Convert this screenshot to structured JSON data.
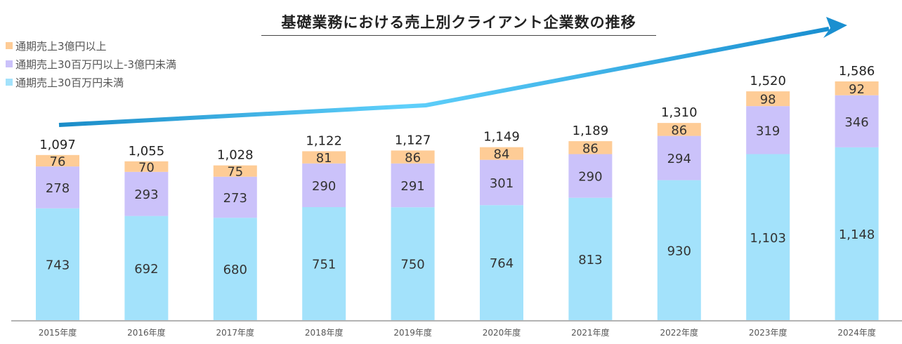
{
  "chart_data": {
    "type": "bar",
    "stacked": true,
    "title": "基礎業務における売上別クライアント企業数の推移",
    "xlabel": "",
    "ylabel": "",
    "ylim": [
      0,
      1800
    ],
    "grid": false,
    "legend_position": "top-left",
    "categories": [
      "2015年度",
      "2016年度",
      "2017年度",
      "2018年度",
      "2019年度",
      "2020年度",
      "2021年度",
      "2022年度",
      "2023年度",
      "2024年度"
    ],
    "series": [
      {
        "name": "通期売上30百万円未満",
        "color": "#a3e2fb",
        "values": [
          743,
          692,
          680,
          751,
          750,
          764,
          813,
          930,
          1103,
          1148
        ],
        "labels": [
          "743",
          "692",
          "680",
          "751",
          "750",
          "764",
          "813",
          "930",
          "1,103",
          "1,148"
        ]
      },
      {
        "name": "通期売上30百万円以上-3億円未満",
        "color": "#cbc2fa",
        "values": [
          278,
          293,
          273,
          290,
          291,
          301,
          290,
          294,
          319,
          346
        ],
        "labels": [
          "278",
          "293",
          "273",
          "290",
          "291",
          "301",
          "290",
          "294",
          "319",
          "346"
        ]
      },
      {
        "name": "通期売上3億円以上",
        "color": "#fecc96",
        "values": [
          76,
          70,
          75,
          81,
          86,
          84,
          86,
          86,
          98,
          92
        ],
        "labels": [
          "76",
          "70",
          "75",
          "81",
          "86",
          "84",
          "86",
          "86",
          "98",
          "92"
        ]
      }
    ],
    "totals": [
      1097,
      1055,
      1028,
      1122,
      1127,
      1149,
      1189,
      1310,
      1520,
      1586
    ],
    "total_labels": [
      "1,097",
      "1,055",
      "1,028",
      "1,122",
      "1,127",
      "1,149",
      "1,189",
      "1,310",
      "1,520",
      "1,586"
    ],
    "legend_order": [
      2,
      1,
      0
    ],
    "annotation": {
      "type": "trend-arrow",
      "description": "upward trend arrow",
      "color_start": "#1a8cc8",
      "color_mid": "#5fd0fb",
      "color_end": "#1a8fd0"
    }
  }
}
